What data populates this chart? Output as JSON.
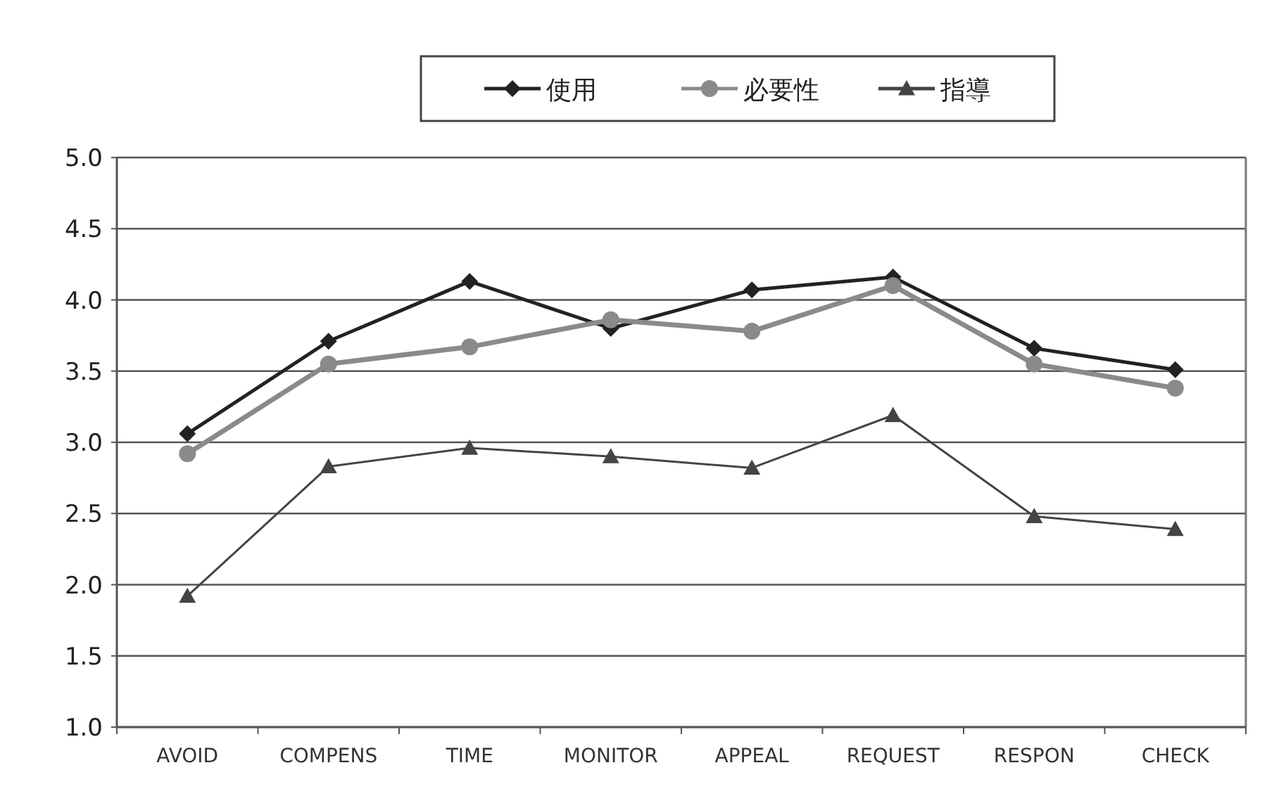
{
  "chart_data": {
    "type": "line",
    "categories": [
      "AVOID",
      "COMPENS",
      "TIME",
      "MONITOR",
      "APPEAL",
      "REQUEST",
      "RESPON",
      "CHECK"
    ],
    "series": [
      {
        "name": "使用",
        "color": "#222222",
        "marker": "diamond",
        "values": [
          3.06,
          3.71,
          4.13,
          3.8,
          4.07,
          4.16,
          3.66,
          3.51
        ]
      },
      {
        "name": "必要性",
        "color": "#8a8a8a",
        "marker": "circle",
        "values": [
          2.92,
          3.55,
          3.67,
          3.86,
          3.78,
          4.1,
          3.55,
          3.38
        ]
      },
      {
        "name": "指導",
        "color": "#444444",
        "marker": "triangle",
        "values": [
          1.92,
          2.83,
          2.96,
          2.9,
          2.82,
          3.19,
          2.48,
          2.39
        ]
      }
    ],
    "ylim": [
      1.0,
      5.0
    ],
    "yticks": [
      {
        "value": 1.0,
        "label": "1.0"
      },
      {
        "value": 1.5,
        "label": "1.5"
      },
      {
        "value": 2.0,
        "label": "2.0"
      },
      {
        "value": 2.5,
        "label": "2.5"
      },
      {
        "value": 3.0,
        "label": "3.0"
      },
      {
        "value": 3.5,
        "label": "3.5"
      },
      {
        "value": 4.0,
        "label": "4.0"
      },
      {
        "value": 4.5,
        "label": "4.5"
      },
      {
        "value": 5.0,
        "label": "5.0"
      }
    ],
    "grid": "y",
    "legend": "top"
  }
}
